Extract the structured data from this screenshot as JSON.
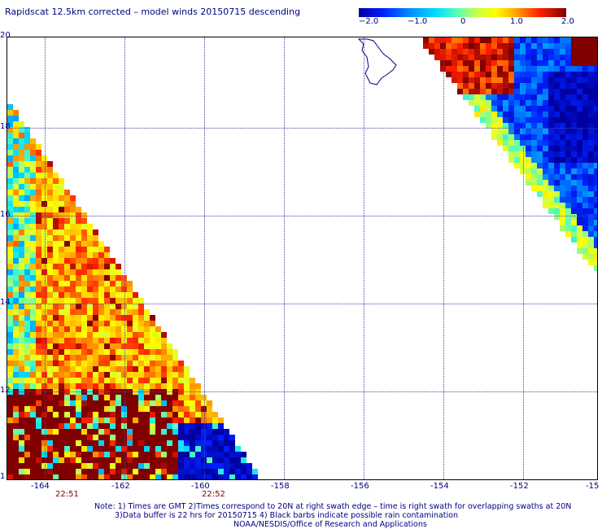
{
  "title": "Rapidscat 12.5km corrected – model winds 20150715 descending",
  "colorbar": {
    "labels": [
      "−2.0",
      "−1.0",
      "0",
      "1.0",
      "2.0"
    ],
    "colors": [
      "#0000a0",
      "#0040ff",
      "#00c0ff",
      "#00ffc0",
      "#80ff40",
      "#ffff00",
      "#ffa000",
      "#ff4000",
      "#c00000",
      "#800000"
    ]
  },
  "y_labels": [
    "20",
    "18",
    "16",
    "14",
    "12",
    "1"
  ],
  "x_labels": [
    "-164",
    "-162",
    "-160",
    "-158",
    "-156",
    "-154",
    "-152",
    "-15"
  ],
  "time_labels": [
    "22:51",
    "22:52"
  ],
  "notes": [
    "Note: 1) Times are GMT 2)Times correspond to 20N at right swath edge – time is right swath for overlapping swaths at 20N",
    "3)Data buffer is 22 hrs for 20150715 4) Black barbs indicate possible rain contamination",
    "NOAA/NESDIS/Office of Research and Applications"
  ],
  "map_data": {
    "variable": "wind speed difference (corrected – model)",
    "lon_range": [
      -165,
      -150
    ],
    "lat_range": [
      10,
      20
    ],
    "color_range": [
      -2.0,
      2.0
    ],
    "left_swath": "southwest region, mostly positive (yellow/orange/red) values, dark red cluster near 10-12N",
    "right_swath": "northeast corner, red near 19-20N west side, dark blue (negative) near -151 to -150, 18-19N"
  }
}
